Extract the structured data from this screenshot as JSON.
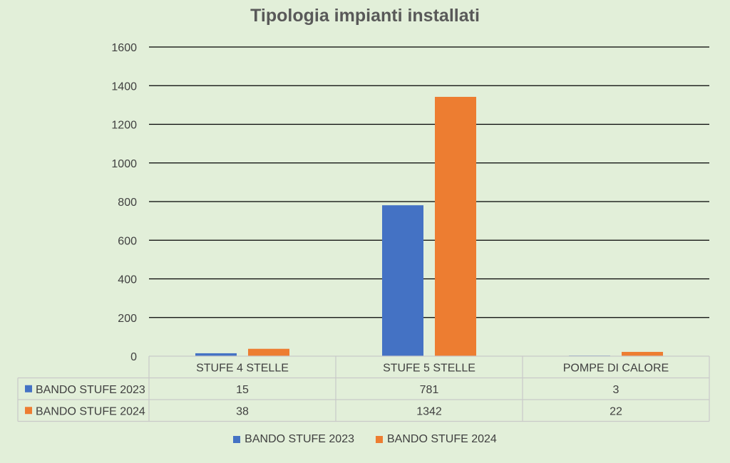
{
  "chart_data": {
    "type": "bar",
    "title": "Tipologia impianti installati",
    "categories": [
      "STUFE 4 STELLE",
      "STUFE 5 STELLE",
      "POMPE DI CALORE"
    ],
    "series": [
      {
        "name": "BANDO STUFE 2023",
        "values": [
          15,
          781,
          3
        ],
        "color": "#4472c4"
      },
      {
        "name": "BANDO STUFE 2024",
        "values": [
          38,
          1342,
          22
        ],
        "color": "#ed7d31"
      }
    ],
    "ylim": [
      0,
      1600
    ],
    "yticks": [
      "0",
      "200",
      "400",
      "600",
      "800",
      "1000",
      "1200",
      "1400",
      "1600"
    ],
    "grid": true,
    "legend": "bottom",
    "data_table": true
  }
}
